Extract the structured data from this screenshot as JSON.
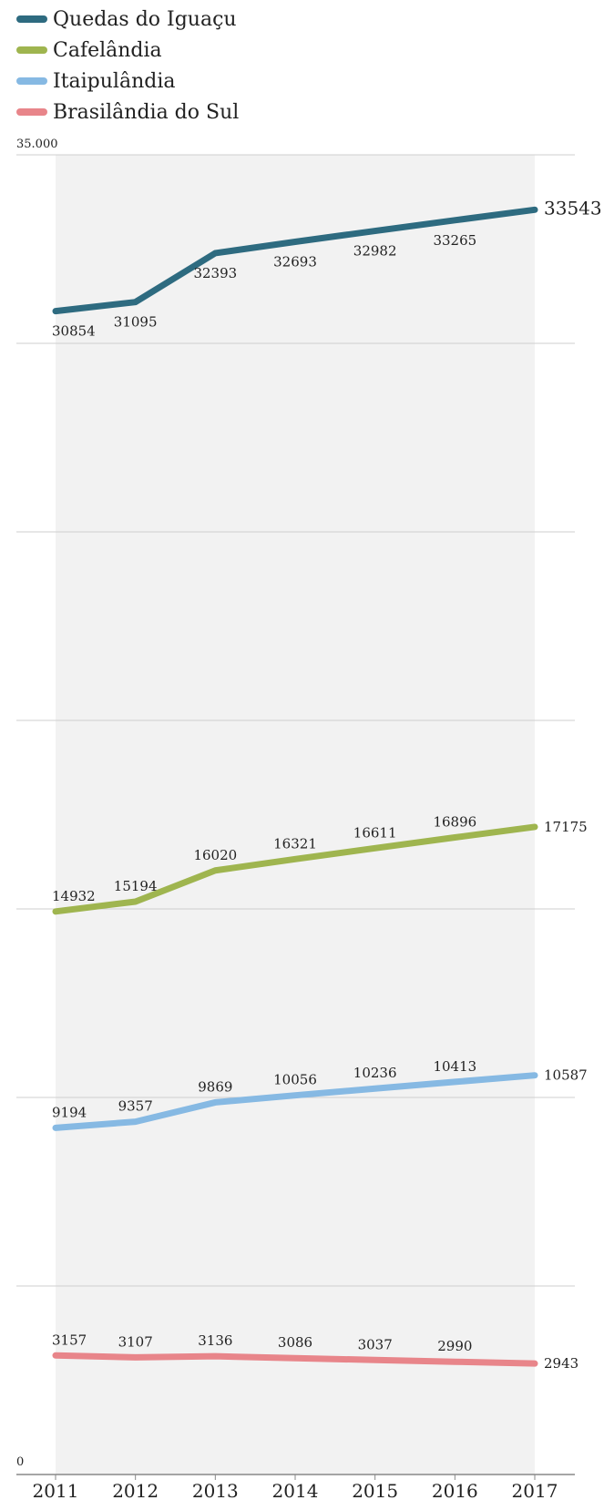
{
  "chart_data": {
    "type": "line",
    "categories": [
      "2011",
      "2012",
      "2013",
      "2014",
      "2015",
      "2016",
      "2017"
    ],
    "series": [
      {
        "name": "Quedas do Iguaçu",
        "color": "#2e6b80",
        "values": [
          30854,
          31095,
          32393,
          32693,
          32982,
          33265,
          33543
        ]
      },
      {
        "name": "Cafelândia",
        "color": "#9fb54f",
        "values": [
          14932,
          15194,
          16020,
          16321,
          16611,
          16896,
          17175
        ]
      },
      {
        "name": "Itaipulândia",
        "color": "#86b9e3",
        "values": [
          9194,
          9357,
          9869,
          10056,
          10236,
          10413,
          10587
        ]
      },
      {
        "name": "Brasilândia do Sul",
        "color": "#e8858a",
        "values": [
          3157,
          3107,
          3136,
          3086,
          3037,
          2990,
          2943
        ]
      }
    ],
    "ylim": [
      0,
      35000
    ],
    "ytick_labels": {
      "top": "35.000",
      "bottom": "0"
    },
    "grid": true,
    "legend_position": "top-left"
  }
}
